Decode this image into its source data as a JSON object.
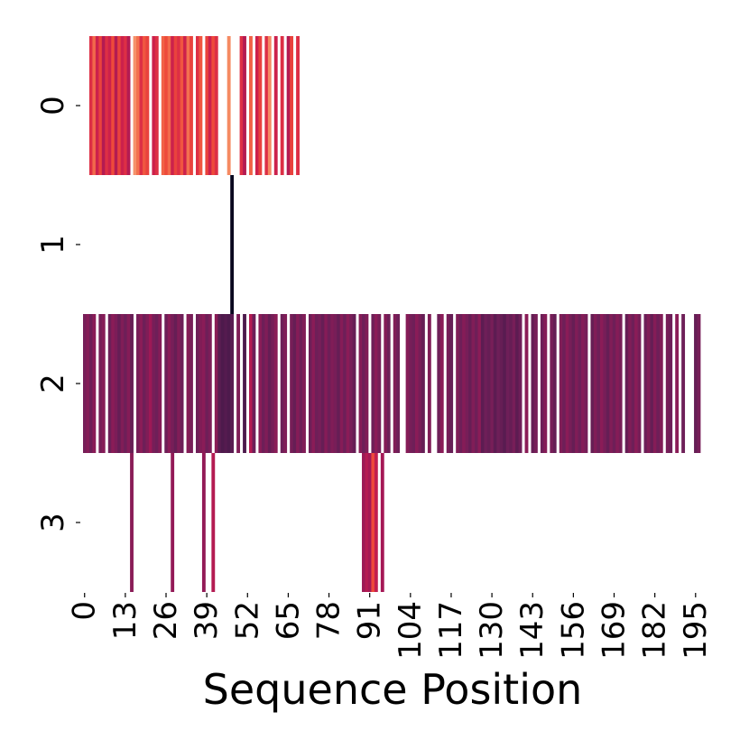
{
  "chart_data": {
    "type": "heatmap",
    "xlabel": "Sequence Position",
    "ylabel": "",
    "x_range": [
      0,
      197
    ],
    "x_ticks": [
      0,
      13,
      26,
      39,
      52,
      65,
      78,
      91,
      104,
      117,
      130,
      143,
      156,
      169,
      182,
      195
    ],
    "rows": [
      "0",
      "1",
      "2",
      "3"
    ],
    "colormap": "rocket",
    "colorbar": false,
    "grid": false,
    "missing_cells": "blank",
    "rows_data": [
      {
        "row": "0",
        "cells": [
          {
            "x": 2,
            "v": 0.55
          },
          {
            "x": 3,
            "v": 0.7
          },
          {
            "x": 4,
            "v": 0.5
          },
          {
            "x": 5,
            "v": 0.6
          },
          {
            "x": 6,
            "v": 0.45
          },
          {
            "x": 7,
            "v": 0.55
          },
          {
            "x": 8,
            "v": 0.5
          },
          {
            "x": 9,
            "v": 0.62
          },
          {
            "x": 10,
            "v": 0.45
          },
          {
            "x": 11,
            "v": 0.6
          },
          {
            "x": 12,
            "v": 0.5
          },
          {
            "x": 13,
            "v": 0.55
          },
          {
            "x": 14,
            "v": 0.45
          },
          {
            "x": 16,
            "v": 0.8
          },
          {
            "x": 17,
            "v": 0.72
          },
          {
            "x": 18,
            "v": 0.55
          },
          {
            "x": 19,
            "v": 0.65
          },
          {
            "x": 20,
            "v": 0.6
          },
          {
            "x": 22,
            "v": 0.5
          },
          {
            "x": 23,
            "v": 0.55
          },
          {
            "x": 25,
            "v": 0.68
          },
          {
            "x": 26,
            "v": 0.62
          },
          {
            "x": 27,
            "v": 0.7
          },
          {
            "x": 28,
            "v": 0.5
          },
          {
            "x": 29,
            "v": 0.6
          },
          {
            "x": 30,
            "v": 0.55
          },
          {
            "x": 31,
            "v": 0.65
          },
          {
            "x": 32,
            "v": 0.5
          },
          {
            "x": 33,
            "v": 0.72
          },
          {
            "x": 34,
            "v": 0.6
          },
          {
            "x": 36,
            "v": 0.55
          },
          {
            "x": 37,
            "v": 0.65
          },
          {
            "x": 39,
            "v": 0.6
          },
          {
            "x": 40,
            "v": 0.5
          },
          {
            "x": 41,
            "v": 0.62
          },
          {
            "x": 42,
            "v": 0.55
          },
          {
            "x": 46,
            "v": 0.78
          },
          {
            "x": 50,
            "v": 0.55
          },
          {
            "x": 51,
            "v": 0.45
          },
          {
            "x": 53,
            "v": 0.68
          },
          {
            "x": 55,
            "v": 0.5
          },
          {
            "x": 56,
            "v": 0.6
          },
          {
            "x": 58,
            "v": 0.55
          },
          {
            "x": 59,
            "v": 0.78
          },
          {
            "x": 61,
            "v": 0.5
          },
          {
            "x": 63,
            "v": 0.55
          },
          {
            "x": 65,
            "v": 0.45
          },
          {
            "x": 66,
            "v": 0.6
          },
          {
            "x": 68,
            "v": 0.55
          }
        ]
      },
      {
        "row": "1",
        "cells": [
          {
            "x": 47,
            "v": 0.02
          }
        ]
      },
      {
        "row": "2",
        "cells": [
          {
            "x": 0,
            "v": 0.32
          },
          {
            "x": 1,
            "v": 0.35
          },
          {
            "x": 2,
            "v": 0.3
          },
          {
            "x": 3,
            "v": 0.36
          },
          {
            "x": 5,
            "v": 0.32
          },
          {
            "x": 6,
            "v": 0.35
          },
          {
            "x": 8,
            "v": 0.3
          },
          {
            "x": 9,
            "v": 0.36
          },
          {
            "x": 10,
            "v": 0.33
          },
          {
            "x": 11,
            "v": 0.28
          },
          {
            "x": 12,
            "v": 0.34
          },
          {
            "x": 13,
            "v": 0.3
          },
          {
            "x": 14,
            "v": 0.35
          },
          {
            "x": 15,
            "v": 0.28
          },
          {
            "x": 17,
            "v": 0.32
          },
          {
            "x": 18,
            "v": 0.36
          },
          {
            "x": 19,
            "v": 0.3
          },
          {
            "x": 20,
            "v": 0.34
          },
          {
            "x": 21,
            "v": 0.4
          },
          {
            "x": 22,
            "v": 0.32
          },
          {
            "x": 23,
            "v": 0.3
          },
          {
            "x": 24,
            "v": 0.35
          },
          {
            "x": 26,
            "v": 0.3
          },
          {
            "x": 27,
            "v": 0.36
          },
          {
            "x": 28,
            "v": 0.32
          },
          {
            "x": 29,
            "v": 0.28
          },
          {
            "x": 30,
            "v": 0.34
          },
          {
            "x": 31,
            "v": 0.3
          },
          {
            "x": 33,
            "v": 0.35
          },
          {
            "x": 34,
            "v": 0.32
          },
          {
            "x": 36,
            "v": 0.3
          },
          {
            "x": 37,
            "v": 0.34
          },
          {
            "x": 38,
            "v": 0.36
          },
          {
            "x": 39,
            "v": 0.3
          },
          {
            "x": 40,
            "v": 0.33
          },
          {
            "x": 42,
            "v": 0.36
          },
          {
            "x": 43,
            "v": 0.25
          },
          {
            "x": 44,
            "v": 0.22
          },
          {
            "x": 45,
            "v": 0.24
          },
          {
            "x": 46,
            "v": 0.22
          },
          {
            "x": 47,
            "v": 0.25
          },
          {
            "x": 49,
            "v": 0.34
          },
          {
            "x": 51,
            "v": 0.22
          },
          {
            "x": 53,
            "v": 0.45
          },
          {
            "x": 54,
            "v": 0.3
          },
          {
            "x": 56,
            "v": 0.36
          },
          {
            "x": 57,
            "v": 0.3
          },
          {
            "x": 58,
            "v": 0.34
          },
          {
            "x": 59,
            "v": 0.28
          },
          {
            "x": 60,
            "v": 0.32
          },
          {
            "x": 61,
            "v": 0.36
          },
          {
            "x": 63,
            "v": 0.3
          },
          {
            "x": 64,
            "v": 0.34
          },
          {
            "x": 66,
            "v": 0.32
          },
          {
            "x": 67,
            "v": 0.28
          },
          {
            "x": 68,
            "v": 0.35
          },
          {
            "x": 69,
            "v": 0.3
          },
          {
            "x": 70,
            "v": 0.34
          },
          {
            "x": 72,
            "v": 0.3
          },
          {
            "x": 73,
            "v": 0.36
          },
          {
            "x": 74,
            "v": 0.3
          },
          {
            "x": 75,
            "v": 0.32
          },
          {
            "x": 76,
            "v": 0.28
          },
          {
            "x": 77,
            "v": 0.35
          },
          {
            "x": 78,
            "v": 0.3
          },
          {
            "x": 79,
            "v": 0.34
          },
          {
            "x": 80,
            "v": 0.32
          },
          {
            "x": 81,
            "v": 0.28
          },
          {
            "x": 82,
            "v": 0.35
          },
          {
            "x": 83,
            "v": 0.3
          },
          {
            "x": 84,
            "v": 0.36
          },
          {
            "x": 85,
            "v": 0.32
          },
          {
            "x": 86,
            "v": 0.28
          },
          {
            "x": 88,
            "v": 0.35
          },
          {
            "x": 89,
            "v": 0.3
          },
          {
            "x": 90,
            "v": 0.34
          },
          {
            "x": 92,
            "v": 0.3
          },
          {
            "x": 93,
            "v": 0.36
          },
          {
            "x": 94,
            "v": 0.32
          },
          {
            "x": 96,
            "v": 0.35
          },
          {
            "x": 97,
            "v": 0.3
          },
          {
            "x": 99,
            "v": 0.34
          },
          {
            "x": 100,
            "v": 0.3
          },
          {
            "x": 103,
            "v": 0.35
          },
          {
            "x": 104,
            "v": 0.32
          },
          {
            "x": 105,
            "v": 0.3
          },
          {
            "x": 106,
            "v": 0.36
          },
          {
            "x": 107,
            "v": 0.32
          },
          {
            "x": 108,
            "v": 0.28
          },
          {
            "x": 110,
            "v": 0.34
          },
          {
            "x": 113,
            "v": 0.3
          },
          {
            "x": 114,
            "v": 0.36
          },
          {
            "x": 116,
            "v": 0.32
          },
          {
            "x": 117,
            "v": 0.28
          },
          {
            "x": 119,
            "v": 0.34
          },
          {
            "x": 120,
            "v": 0.3
          },
          {
            "x": 121,
            "v": 0.35
          },
          {
            "x": 122,
            "v": 0.32
          },
          {
            "x": 123,
            "v": 0.28
          },
          {
            "x": 124,
            "v": 0.34
          },
          {
            "x": 125,
            "v": 0.3
          },
          {
            "x": 126,
            "v": 0.36
          },
          {
            "x": 127,
            "v": 0.26
          },
          {
            "x": 128,
            "v": 0.3
          },
          {
            "x": 129,
            "v": 0.28
          },
          {
            "x": 130,
            "v": 0.32
          },
          {
            "x": 131,
            "v": 0.26
          },
          {
            "x": 132,
            "v": 0.3
          },
          {
            "x": 133,
            "v": 0.28
          },
          {
            "x": 134,
            "v": 0.25
          },
          {
            "x": 135,
            "v": 0.3
          },
          {
            "x": 136,
            "v": 0.28
          },
          {
            "x": 137,
            "v": 0.32
          },
          {
            "x": 138,
            "v": 0.26
          },
          {
            "x": 139,
            "v": 0.3
          },
          {
            "x": 141,
            "v": 0.36
          },
          {
            "x": 143,
            "v": 0.28
          },
          {
            "x": 144,
            "v": 0.32
          },
          {
            "x": 146,
            "v": 0.3
          },
          {
            "x": 147,
            "v": 0.35
          },
          {
            "x": 149,
            "v": 0.32
          },
          {
            "x": 150,
            "v": 0.28
          },
          {
            "x": 152,
            "v": 0.34
          },
          {
            "x": 153,
            "v": 0.3
          },
          {
            "x": 154,
            "v": 0.36
          },
          {
            "x": 155,
            "v": 0.32
          },
          {
            "x": 156,
            "v": 0.28
          },
          {
            "x": 157,
            "v": 0.34
          },
          {
            "x": 158,
            "v": 0.3
          },
          {
            "x": 159,
            "v": 0.35
          },
          {
            "x": 160,
            "v": 0.32
          },
          {
            "x": 162,
            "v": 0.28
          },
          {
            "x": 163,
            "v": 0.34
          },
          {
            "x": 164,
            "v": 0.3
          },
          {
            "x": 165,
            "v": 0.36
          },
          {
            "x": 166,
            "v": 0.32
          },
          {
            "x": 167,
            "v": 0.28
          },
          {
            "x": 168,
            "v": 0.34
          },
          {
            "x": 169,
            "v": 0.3
          },
          {
            "x": 170,
            "v": 0.35
          },
          {
            "x": 171,
            "v": 0.32
          },
          {
            "x": 173,
            "v": 0.28
          },
          {
            "x": 174,
            "v": 0.34
          },
          {
            "x": 175,
            "v": 0.3
          },
          {
            "x": 176,
            "v": 0.36
          },
          {
            "x": 177,
            "v": 0.32
          },
          {
            "x": 179,
            "v": 0.3
          },
          {
            "x": 180,
            "v": 0.34
          },
          {
            "x": 181,
            "v": 0.28
          },
          {
            "x": 182,
            "v": 0.35
          },
          {
            "x": 183,
            "v": 0.3
          },
          {
            "x": 184,
            "v": 0.34
          },
          {
            "x": 186,
            "v": 0.32
          },
          {
            "x": 187,
            "v": 0.3
          },
          {
            "x": 189,
            "v": 0.36
          },
          {
            "x": 191,
            "v": 0.3
          },
          {
            "x": 195,
            "v": 0.28
          },
          {
            "x": 196,
            "v": 0.32
          }
        ]
      },
      {
        "row": "3",
        "cells": [
          {
            "x": 15,
            "v": 0.36
          },
          {
            "x": 28,
            "v": 0.38
          },
          {
            "x": 38,
            "v": 0.38
          },
          {
            "x": 41,
            "v": 0.45
          },
          {
            "x": 89,
            "v": 0.4
          },
          {
            "x": 90,
            "v": 0.45
          },
          {
            "x": 91,
            "v": 0.42
          },
          {
            "x": 92,
            "v": 0.62
          },
          {
            "x": 93,
            "v": 0.48
          },
          {
            "x": 95,
            "v": 0.42
          }
        ]
      }
    ]
  }
}
